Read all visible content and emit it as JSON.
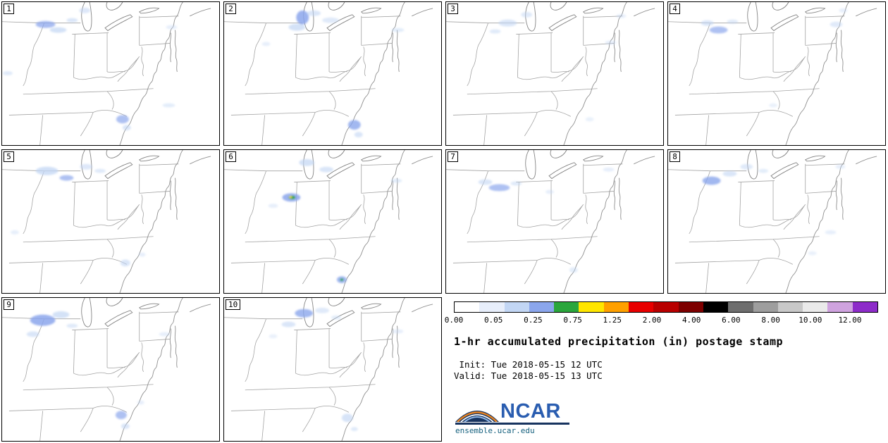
{
  "panels": [
    {
      "id": "1",
      "blobs": [
        [
          62,
          32,
          14,
          5,
          "M",
          0.75
        ],
        [
          80,
          40,
          12,
          4,
          "L",
          0.7
        ],
        [
          100,
          26,
          8,
          3,
          "L",
          0.6
        ],
        [
          118,
          12,
          8,
          4,
          "L",
          0.55
        ],
        [
          8,
          102,
          7,
          3,
          "L",
          0.5
        ],
        [
          172,
          168,
          9,
          6,
          "M",
          0.7
        ],
        [
          178,
          180,
          6,
          4,
          "L",
          0.6
        ],
        [
          238,
          148,
          9,
          3,
          "L",
          0.45
        ],
        [
          242,
          36,
          8,
          3,
          "L",
          0.4
        ]
      ]
    },
    {
      "id": "2",
      "blobs": [
        [
          112,
          22,
          9,
          10,
          "M",
          0.85
        ],
        [
          104,
          36,
          12,
          5,
          "L",
          0.7
        ],
        [
          128,
          16,
          10,
          4,
          "L",
          0.6
        ],
        [
          152,
          26,
          12,
          4,
          "L",
          0.5
        ],
        [
          186,
          176,
          9,
          7,
          "M",
          0.8
        ],
        [
          192,
          190,
          6,
          4,
          "L",
          0.6
        ],
        [
          248,
          40,
          9,
          3,
          "L",
          0.45
        ],
        [
          60,
          60,
          6,
          3,
          "L",
          0.4
        ]
      ]
    },
    {
      "id": "3",
      "blobs": [
        [
          88,
          30,
          13,
          5,
          "L",
          0.6
        ],
        [
          115,
          18,
          8,
          4,
          "L",
          0.5
        ],
        [
          70,
          42,
          8,
          3,
          "L",
          0.5
        ],
        [
          235,
          58,
          8,
          3,
          "L",
          0.4
        ],
        [
          205,
          168,
          6,
          3,
          "L",
          0.35
        ],
        [
          250,
          20,
          7,
          3,
          "L",
          0.4
        ]
      ]
    },
    {
      "id": "4",
      "blobs": [
        [
          72,
          40,
          13,
          5,
          "M",
          0.7
        ],
        [
          56,
          30,
          9,
          4,
          "L",
          0.6
        ],
        [
          92,
          28,
          8,
          3,
          "L",
          0.5
        ],
        [
          240,
          32,
          9,
          4,
          "L",
          0.5
        ],
        [
          150,
          148,
          6,
          3,
          "L",
          0.35
        ],
        [
          250,
          12,
          6,
          3,
          "L",
          0.4
        ]
      ]
    },
    {
      "id": "5",
      "blobs": [
        [
          64,
          30,
          16,
          6,
          "L",
          0.75
        ],
        [
          92,
          40,
          10,
          4,
          "M",
          0.7
        ],
        [
          120,
          24,
          9,
          4,
          "L",
          0.55
        ],
        [
          140,
          30,
          8,
          3,
          "L",
          0.5
        ],
        [
          176,
          162,
          7,
          5,
          "L",
          0.6
        ],
        [
          200,
          150,
          5,
          3,
          "L",
          0.4
        ],
        [
          18,
          118,
          6,
          3,
          "L",
          0.4
        ]
      ]
    },
    {
      "id": "6",
      "blobs": [
        [
          96,
          68,
          13,
          6,
          "M",
          0.85
        ],
        [
          97,
          68,
          5,
          2.5,
          "G",
          1
        ],
        [
          95,
          67.5,
          2,
          1.2,
          "Y",
          1
        ],
        [
          118,
          18,
          11,
          5,
          "L",
          0.7
        ],
        [
          146,
          28,
          10,
          4,
          "L",
          0.6
        ],
        [
          168,
          186,
          7,
          5,
          "M",
          0.8
        ],
        [
          168,
          186,
          2.5,
          1.8,
          "G",
          1
        ],
        [
          246,
          44,
          8,
          3,
          "L",
          0.45
        ],
        [
          70,
          80,
          7,
          3,
          "L",
          0.4
        ]
      ]
    },
    {
      "id": "7",
      "blobs": [
        [
          76,
          54,
          15,
          5,
          "M",
          0.7
        ],
        [
          56,
          46,
          10,
          4,
          "L",
          0.6
        ],
        [
          100,
          48,
          8,
          3,
          "L",
          0.5
        ],
        [
          232,
          28,
          8,
          3,
          "L",
          0.4
        ],
        [
          182,
          172,
          6,
          4,
          "L",
          0.45
        ],
        [
          148,
          60,
          6,
          3,
          "L",
          0.4
        ]
      ]
    },
    {
      "id": "8",
      "blobs": [
        [
          62,
          44,
          13,
          6,
          "M",
          0.8
        ],
        [
          88,
          34,
          10,
          4,
          "L",
          0.6
        ],
        [
          112,
          24,
          9,
          4,
          "L",
          0.5
        ],
        [
          136,
          30,
          7,
          3,
          "L",
          0.45
        ],
        [
          232,
          118,
          8,
          3,
          "L",
          0.4
        ],
        [
          206,
          148,
          6,
          3,
          "L",
          0.35
        ],
        [
          246,
          24,
          7,
          3,
          "L",
          0.4
        ]
      ]
    },
    {
      "id": "9",
      "blobs": [
        [
          58,
          32,
          18,
          8,
          "M",
          0.85
        ],
        [
          84,
          24,
          12,
          5,
          "L",
          0.7
        ],
        [
          44,
          52,
          9,
          4,
          "L",
          0.6
        ],
        [
          100,
          40,
          8,
          3,
          "L",
          0.5
        ],
        [
          170,
          168,
          8,
          6,
          "M",
          0.7
        ],
        [
          176,
          184,
          6,
          4,
          "L",
          0.6
        ],
        [
          198,
          150,
          5,
          3,
          "L",
          0.4
        ],
        [
          232,
          52,
          8,
          3,
          "L",
          0.4
        ]
      ]
    },
    {
      "id": "10",
      "blobs": [
        [
          114,
          22,
          13,
          6,
          "M",
          0.8
        ],
        [
          92,
          38,
          10,
          4,
          "L",
          0.6
        ],
        [
          140,
          18,
          10,
          4,
          "L",
          0.5
        ],
        [
          160,
          28,
          7,
          3,
          "L",
          0.45
        ],
        [
          176,
          172,
          8,
          6,
          "L",
          0.65
        ],
        [
          186,
          188,
          5,
          3,
          "L",
          0.5
        ],
        [
          248,
          48,
          8,
          3,
          "L",
          0.4
        ],
        [
          70,
          55,
          6,
          3,
          "L",
          0.35
        ]
      ]
    }
  ],
  "blob_colors": {
    "L": "#c2d6f4",
    "M": "#8ba6ec",
    "G": "#21a23a",
    "Y": "#ffe100"
  },
  "colorbar": {
    "ticks": [
      "0.00",
      "0.05",
      "0.25",
      "0.75",
      "1.25",
      "2.00",
      "4.00",
      "6.00",
      "8.00",
      "10.00",
      "12.00"
    ],
    "colors": [
      "#ffffff",
      "#e7eefb",
      "#c2d6f4",
      "#8ba6ec",
      "#2aa63c",
      "#ffe600",
      "#ffa000",
      "#e80000",
      "#b80000",
      "#7d0000",
      "#000000",
      "#6e6e6e",
      "#9e9e9e",
      "#c8c8c8",
      "#eaeaea",
      "#cfa3df",
      "#8d2bc9"
    ]
  },
  "legend": {
    "title": "1-hr accumulated precipitation (in) postage stamp",
    "init": " Init: Tue 2018-05-15 12 UTC",
    "valid": "Valid: Tue 2018-05-15 13 UTC",
    "logo_text": "NCAR",
    "site": "ensemble.ucar.edu"
  }
}
